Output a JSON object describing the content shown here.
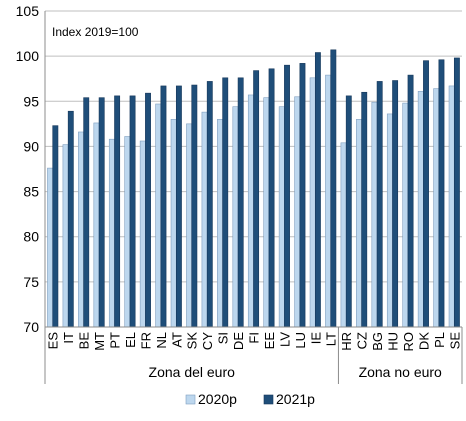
{
  "chart_data": {
    "type": "bar",
    "annotation": "Index 2019=100",
    "ylim": [
      70,
      105
    ],
    "yticks": [
      70,
      75,
      80,
      85,
      90,
      95,
      100,
      105
    ],
    "categories": [
      "ES",
      "IT",
      "BE",
      "MT",
      "PT",
      "EL",
      "FR",
      "NL",
      "AT",
      "SK",
      "CY",
      "SI",
      "DE",
      "FI",
      "EE",
      "LV",
      "LU",
      "IE",
      "LT",
      "HR",
      "CZ",
      "BG",
      "HU",
      "RO",
      "DK",
      "PL",
      "SE"
    ],
    "groups": [
      {
        "label": "Zona del euro",
        "count": 19
      },
      {
        "label": "Zona no euro",
        "count": 8
      }
    ],
    "series": [
      {
        "name": "2020p",
        "color": "#bdd7ee",
        "values": [
          87.6,
          90.2,
          91.6,
          92.6,
          90.8,
          91.1,
          90.6,
          94.7,
          93.0,
          92.5,
          93.8,
          93.0,
          94.4,
          95.7,
          95.4,
          94.4,
          95.5,
          97.6,
          97.9,
          90.4,
          93.0,
          94.9,
          93.6,
          94.8,
          96.1,
          96.4,
          96.7
        ]
      },
      {
        "name": "2021p",
        "color": "#1f4e79",
        "values": [
          92.3,
          93.9,
          95.4,
          95.4,
          95.6,
          95.6,
          95.9,
          96.7,
          96.7,
          96.8,
          97.2,
          97.6,
          97.6,
          98.4,
          98.6,
          99.0,
          99.2,
          100.4,
          100.7,
          95.6,
          96.0,
          97.2,
          97.3,
          97.9,
          99.5,
          99.6,
          99.8
        ]
      }
    ],
    "legend_position": "bottom",
    "grid": true
  }
}
